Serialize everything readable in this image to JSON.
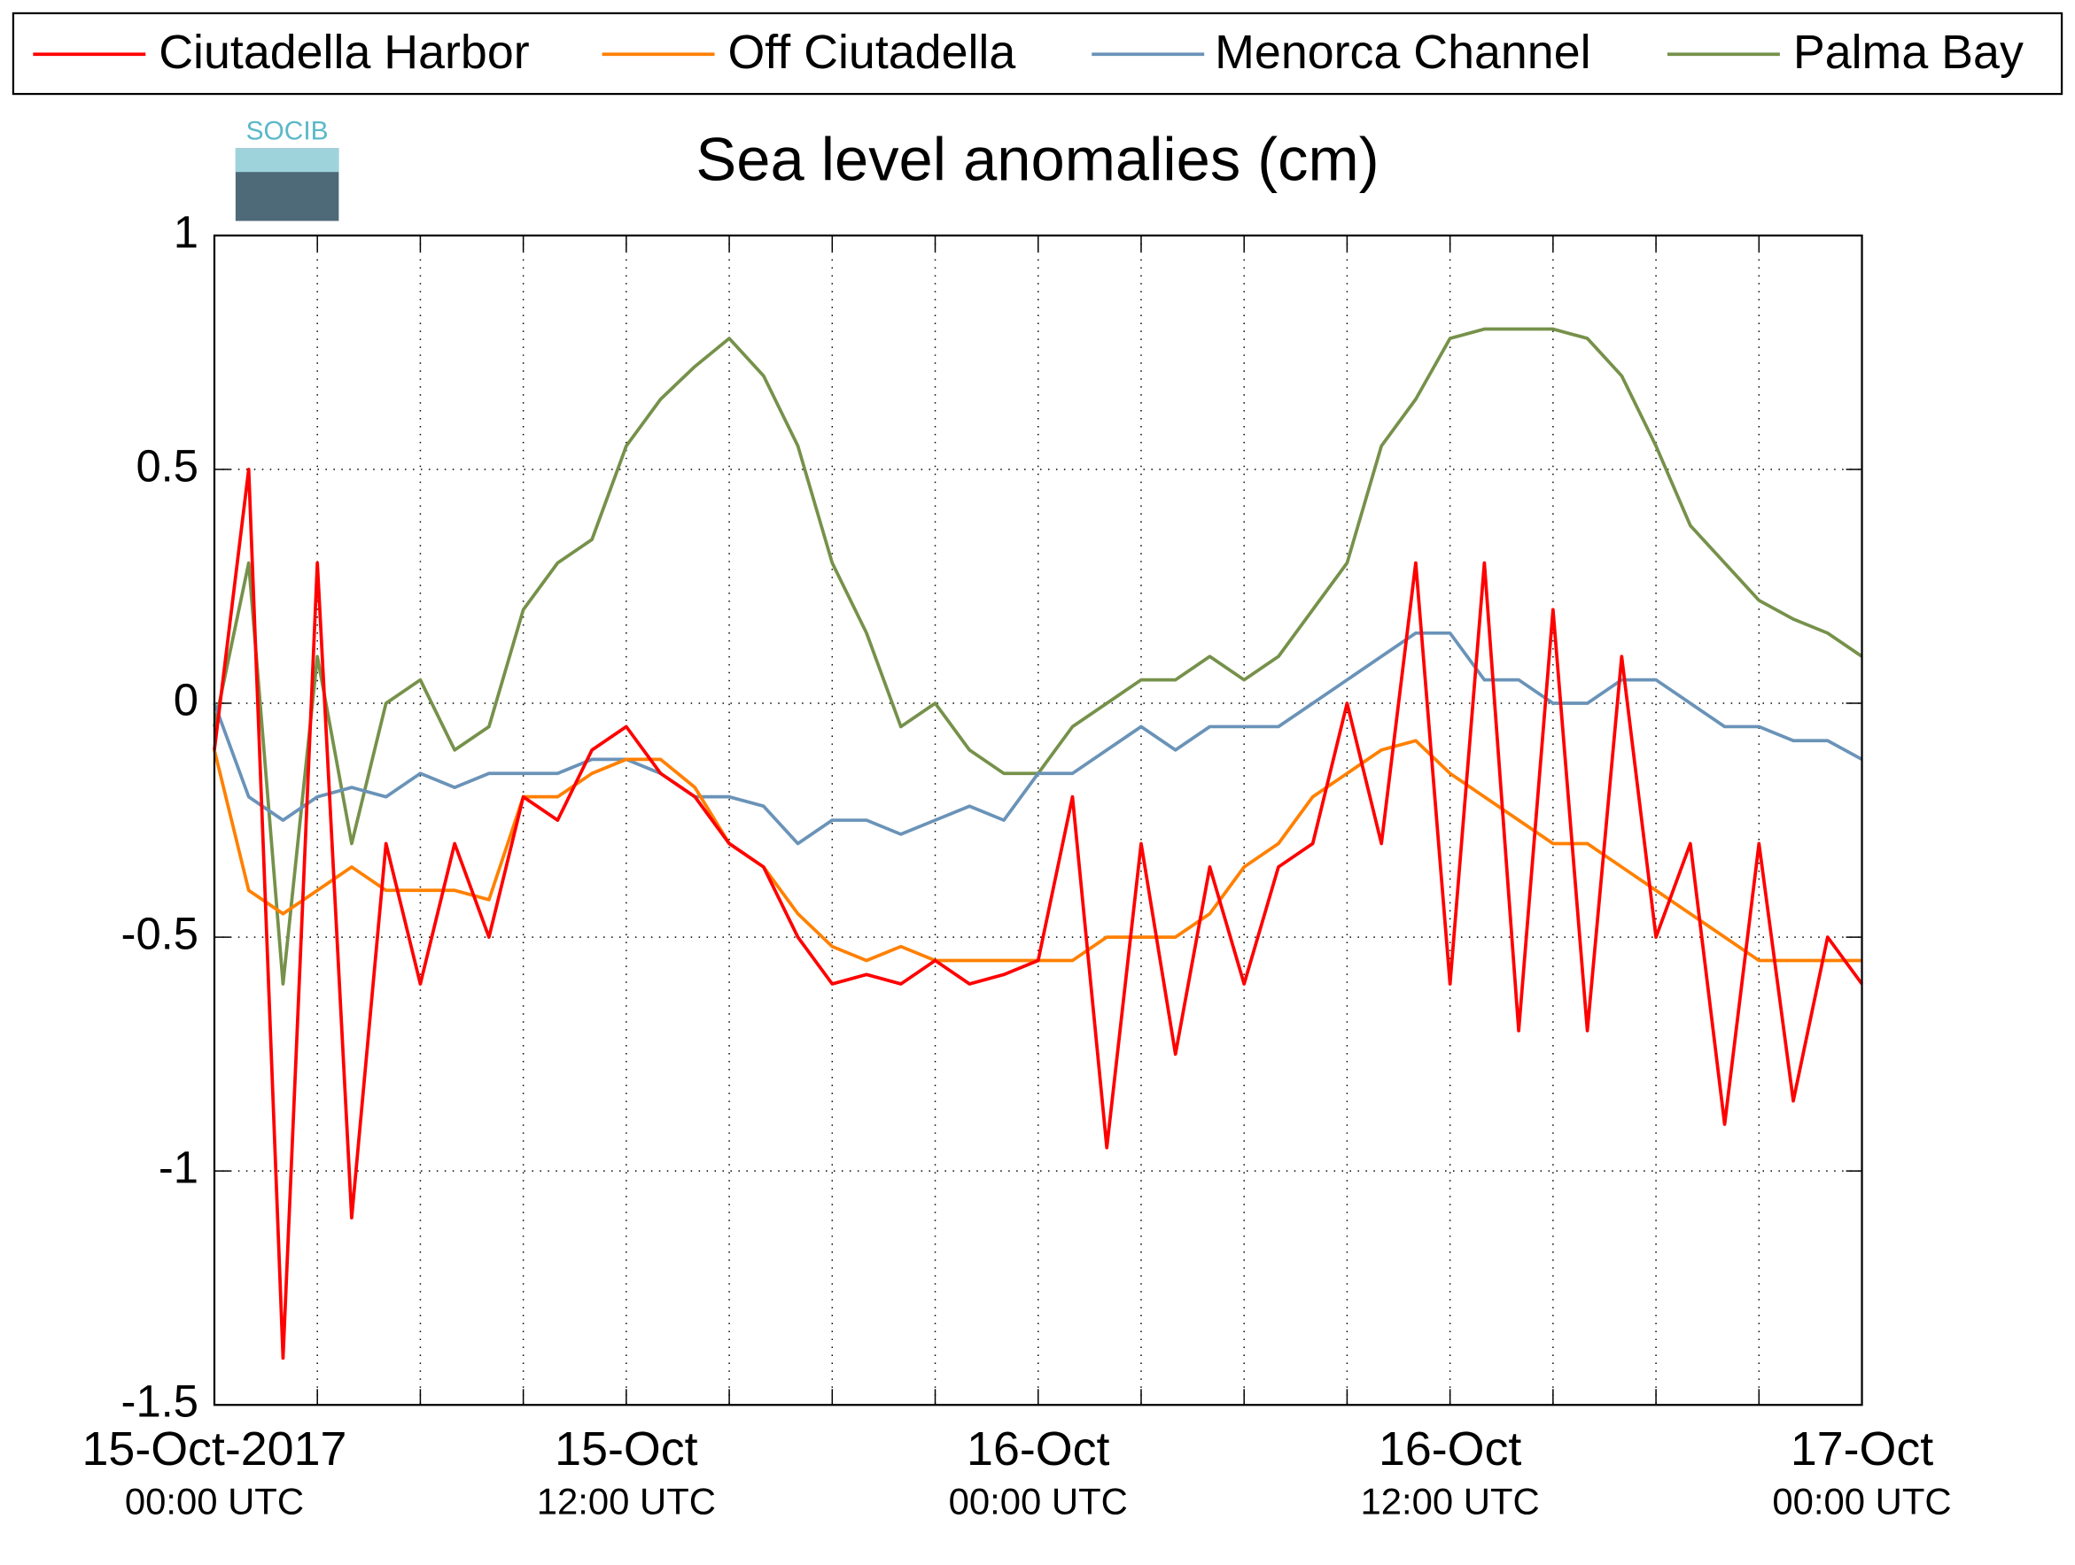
{
  "chart_data": {
    "type": "line",
    "title": "Sea level anomalies (cm)",
    "logo_text": "SOCIB",
    "x": [
      0,
      1,
      2,
      3,
      4,
      5,
      6,
      7,
      8,
      9,
      10,
      11,
      12,
      13,
      14,
      15,
      16,
      17,
      18,
      19,
      20,
      21,
      22,
      23,
      24,
      25,
      26,
      27,
      28,
      29,
      30,
      31,
      32,
      33,
      34,
      35,
      36,
      37,
      38,
      39,
      40,
      41,
      42,
      43,
      44,
      45,
      46,
      47,
      48
    ],
    "series": [
      {
        "name": "Ciutadella Harbor",
        "color": "#ff0000",
        "values": [
          -0.1,
          0.5,
          -1.4,
          0.3,
          -1.1,
          -0.3,
          -0.6,
          -0.3,
          -0.5,
          -0.2,
          -0.25,
          -0.1,
          -0.05,
          -0.15,
          -0.2,
          -0.3,
          -0.35,
          -0.5,
          -0.6,
          -0.58,
          -0.6,
          -0.55,
          -0.6,
          -0.58,
          -0.55,
          -0.2,
          -0.95,
          -0.3,
          -0.75,
          -0.35,
          -0.6,
          -0.35,
          -0.3,
          0.0,
          -0.3,
          0.3,
          -0.6,
          0.3,
          -0.7,
          0.2,
          -0.7,
          0.1,
          -0.5,
          -0.3,
          -0.9,
          -0.3,
          -0.85,
          -0.5,
          -0.6
        ]
      },
      {
        "name": "Off Ciutadella",
        "color": "#ff8000",
        "values": [
          -0.1,
          -0.4,
          -0.45,
          -0.4,
          -0.35,
          -0.4,
          -0.4,
          -0.4,
          -0.42,
          -0.2,
          -0.2,
          -0.15,
          -0.12,
          -0.12,
          -0.18,
          -0.3,
          -0.35,
          -0.45,
          -0.52,
          -0.55,
          -0.52,
          -0.55,
          -0.55,
          -0.55,
          -0.55,
          -0.55,
          -0.5,
          -0.5,
          -0.5,
          -0.45,
          -0.35,
          -0.3,
          -0.2,
          -0.15,
          -0.1,
          -0.08,
          -0.15,
          -0.2,
          -0.25,
          -0.3,
          -0.3,
          -0.35,
          -0.4,
          -0.45,
          -0.5,
          -0.55,
          -0.55,
          -0.55,
          -0.55
        ]
      },
      {
        "name": "Menorca Channel",
        "color": "#6a93b8",
        "values": [
          0.0,
          -0.2,
          -0.25,
          -0.2,
          -0.18,
          -0.2,
          -0.15,
          -0.18,
          -0.15,
          -0.15,
          -0.15,
          -0.12,
          -0.12,
          -0.15,
          -0.2,
          -0.2,
          -0.22,
          -0.3,
          -0.25,
          -0.25,
          -0.28,
          -0.25,
          -0.22,
          -0.25,
          -0.15,
          -0.15,
          -0.1,
          -0.05,
          -0.1,
          -0.05,
          -0.05,
          -0.05,
          0.0,
          0.05,
          0.1,
          0.15,
          0.15,
          0.05,
          0.05,
          0.0,
          0.0,
          0.05,
          0.05,
          0.0,
          -0.05,
          -0.05,
          -0.08,
          -0.08,
          -0.12
        ]
      },
      {
        "name": "Palma Bay",
        "color": "#76914a",
        "values": [
          -0.05,
          0.3,
          -0.6,
          0.1,
          -0.3,
          0.0,
          0.05,
          -0.1,
          -0.05,
          0.2,
          0.3,
          0.35,
          0.55,
          0.65,
          0.72,
          0.78,
          0.7,
          0.55,
          0.3,
          0.15,
          -0.05,
          0.0,
          -0.1,
          -0.15,
          -0.15,
          -0.05,
          0.0,
          0.05,
          0.05,
          0.1,
          0.05,
          0.1,
          0.2,
          0.3,
          0.55,
          0.65,
          0.78,
          0.8,
          0.8,
          0.8,
          0.78,
          0.7,
          0.55,
          0.38,
          0.3,
          0.22,
          0.18,
          0.15,
          0.1
        ]
      }
    ],
    "xlim": [
      0,
      48
    ],
    "xticks": [
      {
        "value": 0,
        "label": [
          "15-Oct-2017",
          "00:00 UTC"
        ]
      },
      3,
      6,
      9,
      {
        "value": 12,
        "label": [
          "15-Oct",
          "12:00 UTC"
        ]
      },
      15,
      18,
      21,
      {
        "value": 24,
        "label": [
          "16-Oct",
          "00:00 UTC"
        ]
      },
      27,
      30,
      33,
      {
        "value": 36,
        "label": [
          "16-Oct",
          "12:00 UTC"
        ]
      },
      39,
      42,
      45,
      {
        "value": 48,
        "label": [
          "17-Oct",
          "00:00 UTC"
        ]
      }
    ],
    "ylim": [
      -1.5,
      1
    ],
    "yticks": [
      -1.5,
      -1,
      -0.5,
      0,
      0.5,
      1
    ],
    "grid": true
  }
}
